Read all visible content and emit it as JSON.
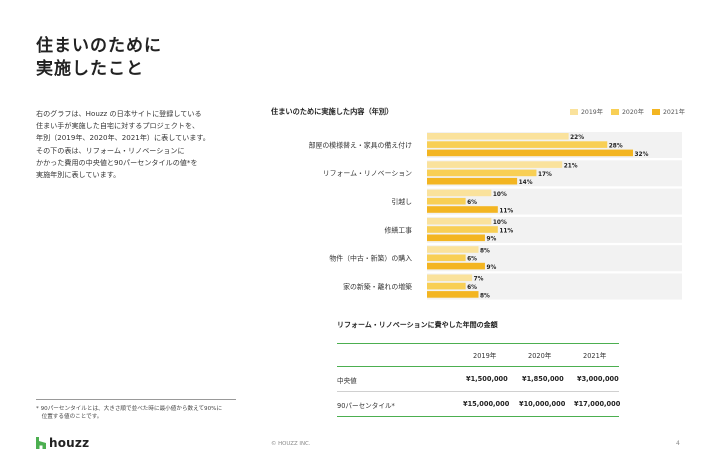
{
  "page": {
    "title_lines": [
      "住まいのために",
      "実施したこと"
    ],
    "intro_lines": [
      "右のグラフは、Houzz の日本サイトに登録している",
      "住まい手が実施した自宅に対するプロジェクトを、",
      "年別（2019年、2020年、2021年）に表しています。",
      "その下の表は、リフォーム・リノベーションに",
      "かかった費用の中央値と90パーセンタイルの値*を",
      "実施年別に表しています。"
    ],
    "footnote_lines": [
      "* 90パーセンタイルとは、大きさ順で並べた時に最小値から数えて90%に",
      "　位置する値のことです。"
    ],
    "logo_text": "houzz",
    "copyright": "© HOUZZ INC.",
    "page_number": "4"
  },
  "colors": {
    "y2019": "#fae29c",
    "y2020": "#f8cf55",
    "y2021": "#f3b521",
    "panel": "#f2f2f2",
    "logo": "#4caf50"
  },
  "chart_data": {
    "type": "bar",
    "orientation": "horizontal",
    "title": "住まいのために実施した内容（年別）",
    "categories": [
      "部屋の模様替え・家具の備え付け",
      "リフォーム・リノベーション",
      "引越し",
      "修繕工事",
      "物件（中古・新築）の購入",
      "家の新築・離れの増築"
    ],
    "series": [
      {
        "name": "2019年",
        "values": [
          22,
          21,
          10,
          10,
          8,
          7
        ]
      },
      {
        "name": "2020年",
        "values": [
          28,
          17,
          6,
          11,
          6,
          6
        ]
      },
      {
        "name": "2021年",
        "values": [
          32,
          14,
          11,
          9,
          9,
          8
        ]
      }
    ],
    "value_suffix": "%",
    "xlim": [
      0,
      45
    ],
    "legend_position": "top-right"
  },
  "table": {
    "title": "リフォーム・リノベーションに費やした年間の金額",
    "columns": [
      "",
      "2019年",
      "2020年",
      "2021年"
    ],
    "rows": [
      {
        "label": "中央値",
        "values": [
          "¥1,500,000",
          "¥1,850,000",
          "¥3,000,000"
        ]
      },
      {
        "label": "90パーセンタイル*",
        "values": [
          "¥15,000,000",
          "¥10,000,000",
          "¥17,000,000"
        ]
      }
    ]
  }
}
